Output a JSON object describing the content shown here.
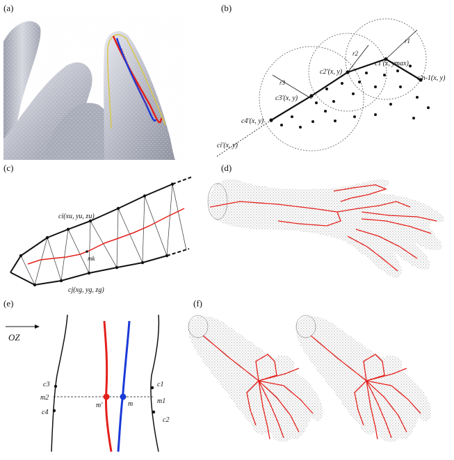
{
  "panels": {
    "a": {
      "label": "(a)"
    },
    "b": {
      "label": "(b)",
      "radii": [
        "r1",
        "r2",
        "r3"
      ],
      "points": {
        "c1": "c1'(x, ymax)",
        "c2": "c2'(x, y)",
        "c3": "c3'(x, y)",
        "c4": "c4'(x, y)",
        "ci": "ci'(x, y)",
        "cn": "c'n-1(x, y)"
      }
    },
    "c": {
      "label": "(c)",
      "ci": "ci(xu, yu, zu)",
      "cj": "cj(xg, yg, zg)",
      "mk": "mk"
    },
    "d": {
      "label": "(d)"
    },
    "e": {
      "label": "(e)",
      "axis": "OZ",
      "points": {
        "c1": "c1",
        "c2": "c2",
        "c3": "c3",
        "c4": "c4",
        "m1": "m1",
        "m2": "m2",
        "m": "m",
        "mprime": "m'"
      }
    },
    "f": {
      "label": "(f)"
    }
  },
  "colors": {
    "red": "#e3201b",
    "blue": "#1a3ad8",
    "yellow": "#d9c64a",
    "surface": "#b9bbc6",
    "black": "#111111"
  }
}
